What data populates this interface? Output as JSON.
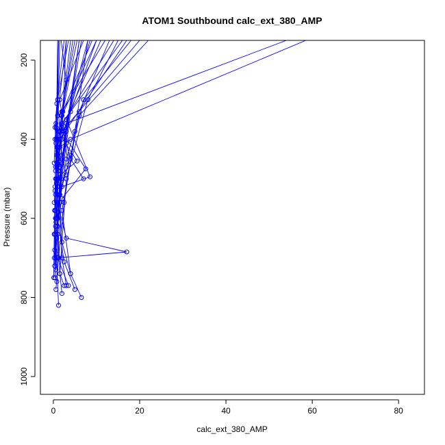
{
  "chart_data": {
    "type": "line",
    "title": "ATOM1 Southbound calc_ext_380_AMP",
    "xlabel": "calc_ext_380_AMP",
    "ylabel": "Pressure (mbar)",
    "xlim": [
      -3,
      86
    ],
    "ylim": [
      1045,
      150
    ],
    "y_reversed": true,
    "x_ticks": [
      0,
      20,
      40,
      60,
      80
    ],
    "y_ticks": [
      200,
      400,
      600,
      800,
      1000
    ],
    "grid": false,
    "legend": "none",
    "marker": "open-circle",
    "color": "#0000ff",
    "series": [
      {
        "x": [
          0.6,
          1.2,
          2.5,
          5.0,
          8.0
        ],
        "y": [
          780,
          700,
          560,
          380,
          150
        ]
      },
      {
        "x": [
          0.8,
          1.0,
          1.5,
          2.2,
          3.0
        ],
        "y": [
          760,
          640,
          520,
          330,
          150
        ]
      },
      {
        "x": [
          1.2,
          0.7,
          0.5,
          0.8,
          1.2
        ],
        "y": [
          820,
          690,
          580,
          420,
          150
        ]
      },
      {
        "x": [
          2.0,
          1.5,
          3.0,
          8.0,
          15.0
        ],
        "y": [
          790,
          740,
          500,
          300,
          150
        ]
      },
      {
        "x": [
          3.0,
          2.0,
          1.5,
          4.0,
          10.0
        ],
        "y": [
          770,
          700,
          540,
          330,
          150
        ]
      },
      {
        "x": [
          6.5,
          4.0,
          2.0,
          6.0,
          13.0
        ],
        "y": [
          800,
          740,
          580,
          330,
          150
        ]
      },
      {
        "x": [
          5.0,
          2.5,
          1.0,
          3.0,
          8.5
        ],
        "y": [
          780,
          710,
          600,
          360,
          150
        ]
      },
      {
        "x": [
          0.3,
          0.5,
          0.8,
          1.0,
          1.5
        ],
        "y": [
          720,
          600,
          470,
          340,
          150
        ]
      },
      {
        "x": [
          0.4,
          0.6,
          1.1,
          2.0,
          4.5
        ],
        "y": [
          750,
          610,
          480,
          340,
          150
        ]
      },
      {
        "x": [
          0.2,
          0.3,
          0.5,
          0.7,
          1.2
        ],
        "y": [
          700,
          580,
          470,
          370,
          150
        ]
      },
      {
        "x": [
          3.5,
          1.0,
          17.0,
          3.0,
          1.0,
          6.0
        ],
        "y": [
          770,
          700,
          685,
          650,
          560,
          150
        ]
      },
      {
        "x": [
          0.5,
          1.0,
          1.8,
          3.0,
          6.5
        ],
        "y": [
          700,
          620,
          500,
          380,
          150
        ]
      },
      {
        "x": [
          0.3,
          1.5,
          4.0,
          7.0,
          18.0
        ],
        "y": [
          680,
          540,
          440,
          300,
          150
        ]
      },
      {
        "x": [
          0.5,
          2.0,
          8.5,
          3.0,
          11.0
        ],
        "y": [
          600,
          520,
          495,
          350,
          150
        ]
      },
      {
        "x": [
          1.0,
          2.0,
          7.5,
          2.0,
          20.0
        ],
        "y": [
          620,
          550,
          475,
          380,
          150
        ]
      },
      {
        "x": [
          0.8,
          1.5,
          3.0,
          6.0,
          22.0
        ],
        "y": [
          650,
          560,
          450,
          340,
          150
        ]
      },
      {
        "x": [
          0.2,
          0.5,
          5.5,
          1.0,
          14.0
        ],
        "y": [
          560,
          500,
          455,
          380,
          150
        ]
      },
      {
        "x": [
          0.4,
          1.2,
          3.5,
          2.0,
          16.0
        ],
        "y": [
          640,
          540,
          465,
          360,
          150
        ]
      },
      {
        "x": [
          0.6,
          1.0,
          2.0,
          3.0,
          54.0
        ],
        "y": [
          600,
          520,
          460,
          360,
          150
        ]
      },
      {
        "x": [
          0.3,
          1.0,
          1.5,
          4.0,
          58.5
        ],
        "y": [
          580,
          500,
          420,
          400,
          150
        ]
      },
      {
        "x": [
          0.5,
          0.8,
          1.2,
          2.0,
          4.0
        ],
        "y": [
          540,
          460,
          400,
          330,
          150
        ]
      },
      {
        "x": [
          1.5,
          1.2,
          1.0,
          2.0,
          12.0
        ],
        "y": [
          560,
          480,
          420,
          330,
          150
        ]
      },
      {
        "x": [
          0.7,
          1.0,
          2.5,
          1.5,
          7.0
        ],
        "y": [
          510,
          430,
          380,
          300,
          150
        ]
      },
      {
        "x": [
          0.4,
          1.2,
          2.0,
          1.8,
          9.0
        ],
        "y": [
          530,
          450,
          400,
          340,
          150
        ]
      },
      {
        "x": [
          7.0,
          4.0,
          3.0,
          2.0,
          5.5
        ],
        "y": [
          500,
          450,
          410,
          340,
          150
        ]
      },
      {
        "x": [
          3.0,
          2.0,
          1.5,
          1.0,
          3.5
        ],
        "y": [
          490,
          440,
          380,
          300,
          150
        ]
      },
      {
        "x": [
          0.9,
          0.6,
          0.4,
          0.8,
          2.5
        ],
        "y": [
          470,
          410,
          370,
          310,
          150
        ]
      },
      {
        "x": [
          0.5,
          0.8,
          1.2,
          2.0,
          10.0
        ],
        "y": [
          480,
          420,
          380,
          340,
          150
        ]
      },
      {
        "x": [
          1.5,
          1.0,
          2.0,
          3.0,
          1.8
        ],
        "y": [
          470,
          420,
          370,
          250,
          150
        ]
      },
      {
        "x": [
          0.2,
          0.4,
          0.6,
          1.0,
          3.0
        ],
        "y": [
          460,
          400,
          360,
          340,
          150
        ]
      },
      {
        "x": [
          2.5,
          1.5,
          1.0,
          2.0,
          6.0
        ],
        "y": [
          770,
          740,
          600,
          450,
          150
        ]
      },
      {
        "x": [
          4.0,
          2.0,
          1.0,
          1.5,
          8.0
        ],
        "y": [
          740,
          660,
          540,
          420,
          150
        ]
      },
      {
        "x": [
          0.6,
          0.5,
          0.7,
          1.5,
          17.0
        ],
        "y": [
          730,
          620,
          500,
          400,
          150
        ]
      },
      {
        "x": [
          0.1,
          0.2,
          0.4,
          0.7,
          1.0
        ],
        "y": [
          750,
          640,
          520,
          400,
          150
        ]
      },
      {
        "x": [
          1.2,
          0.9,
          0.8,
          2.0,
          5.0
        ],
        "y": [
          700,
          600,
          440,
          330,
          150
        ]
      }
    ]
  }
}
